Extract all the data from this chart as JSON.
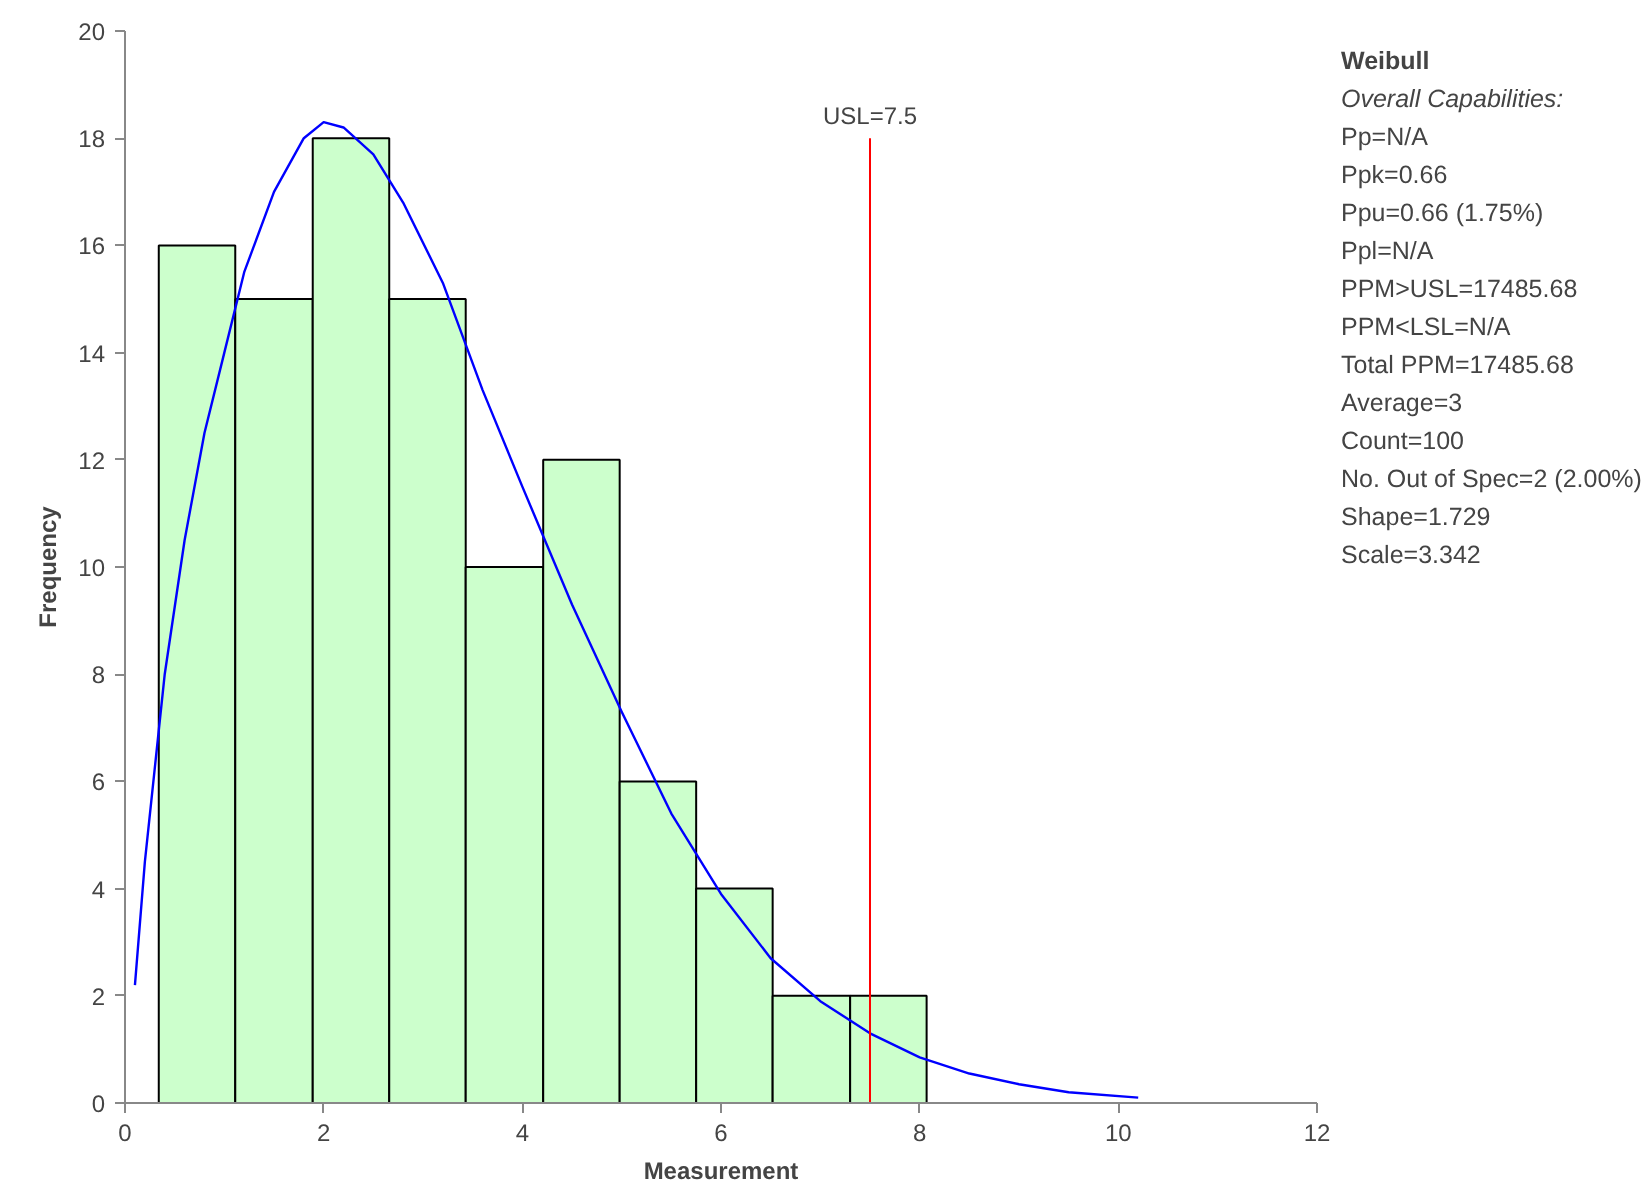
{
  "chart_data": {
    "type": "histogram",
    "xlabel": "Measurement",
    "ylabel": "Frequency",
    "bins": [
      0.34,
      1.11,
      1.89,
      2.66,
      3.43,
      4.21,
      4.98,
      5.75,
      6.52,
      7.3,
      8.07
    ],
    "values": [
      16,
      15,
      18,
      15,
      10,
      12,
      6,
      4,
      2,
      2
    ],
    "color": "#ccffcc",
    "series": [
      {
        "type": "line",
        "color": "#0000ff",
        "x": [
          0.1,
          0.2,
          0.4,
          0.6,
          0.8,
          1.0,
          1.2,
          1.5,
          1.8,
          2.0,
          2.2,
          2.5,
          2.8,
          3.2,
          3.6,
          4.0,
          4.5,
          5.0,
          5.5,
          6.0,
          6.5,
          7.0,
          7.5,
          8.0,
          8.5,
          9.0,
          9.5,
          10.2
        ],
        "values": [
          2.2,
          4.5,
          8,
          10.5,
          12.5,
          14,
          15.5,
          17,
          18,
          18.3,
          18.2,
          17.7,
          16.8,
          15.3,
          13.3,
          11.5,
          9.3,
          7.3,
          5.4,
          3.9,
          2.7,
          1.9,
          1.3,
          0.85,
          0.55,
          0.35,
          0.2,
          0.1
        ]
      }
    ],
    "ref_lines": [
      {
        "axis": "x",
        "value": 7.5,
        "label": "USL=7.5",
        "color": "#ff0000"
      }
    ],
    "xlim": [
      0,
      12
    ],
    "xticks": [
      0,
      2,
      4,
      6,
      8,
      10,
      12
    ],
    "ylim": [
      0,
      20
    ],
    "yticks": [
      0,
      2,
      4,
      6,
      8,
      10,
      12,
      14,
      16,
      18,
      20
    ],
    "grid": false,
    "annotations": [
      "Weibull",
      "Overall Capabilities:",
      "Pp=N/A",
      "Ppk=0.66",
      "Ppu=0.66 (1.75%)",
      "Ppl=N/A",
      "PPM>USL=17485.68",
      "PPM<LSL=N/A",
      "Total PPM=17485.68",
      "Average=3",
      "Count=100",
      "No. Out of Spec=2 (2.00%)",
      "Shape=1.729",
      "Scale=3.342"
    ]
  }
}
